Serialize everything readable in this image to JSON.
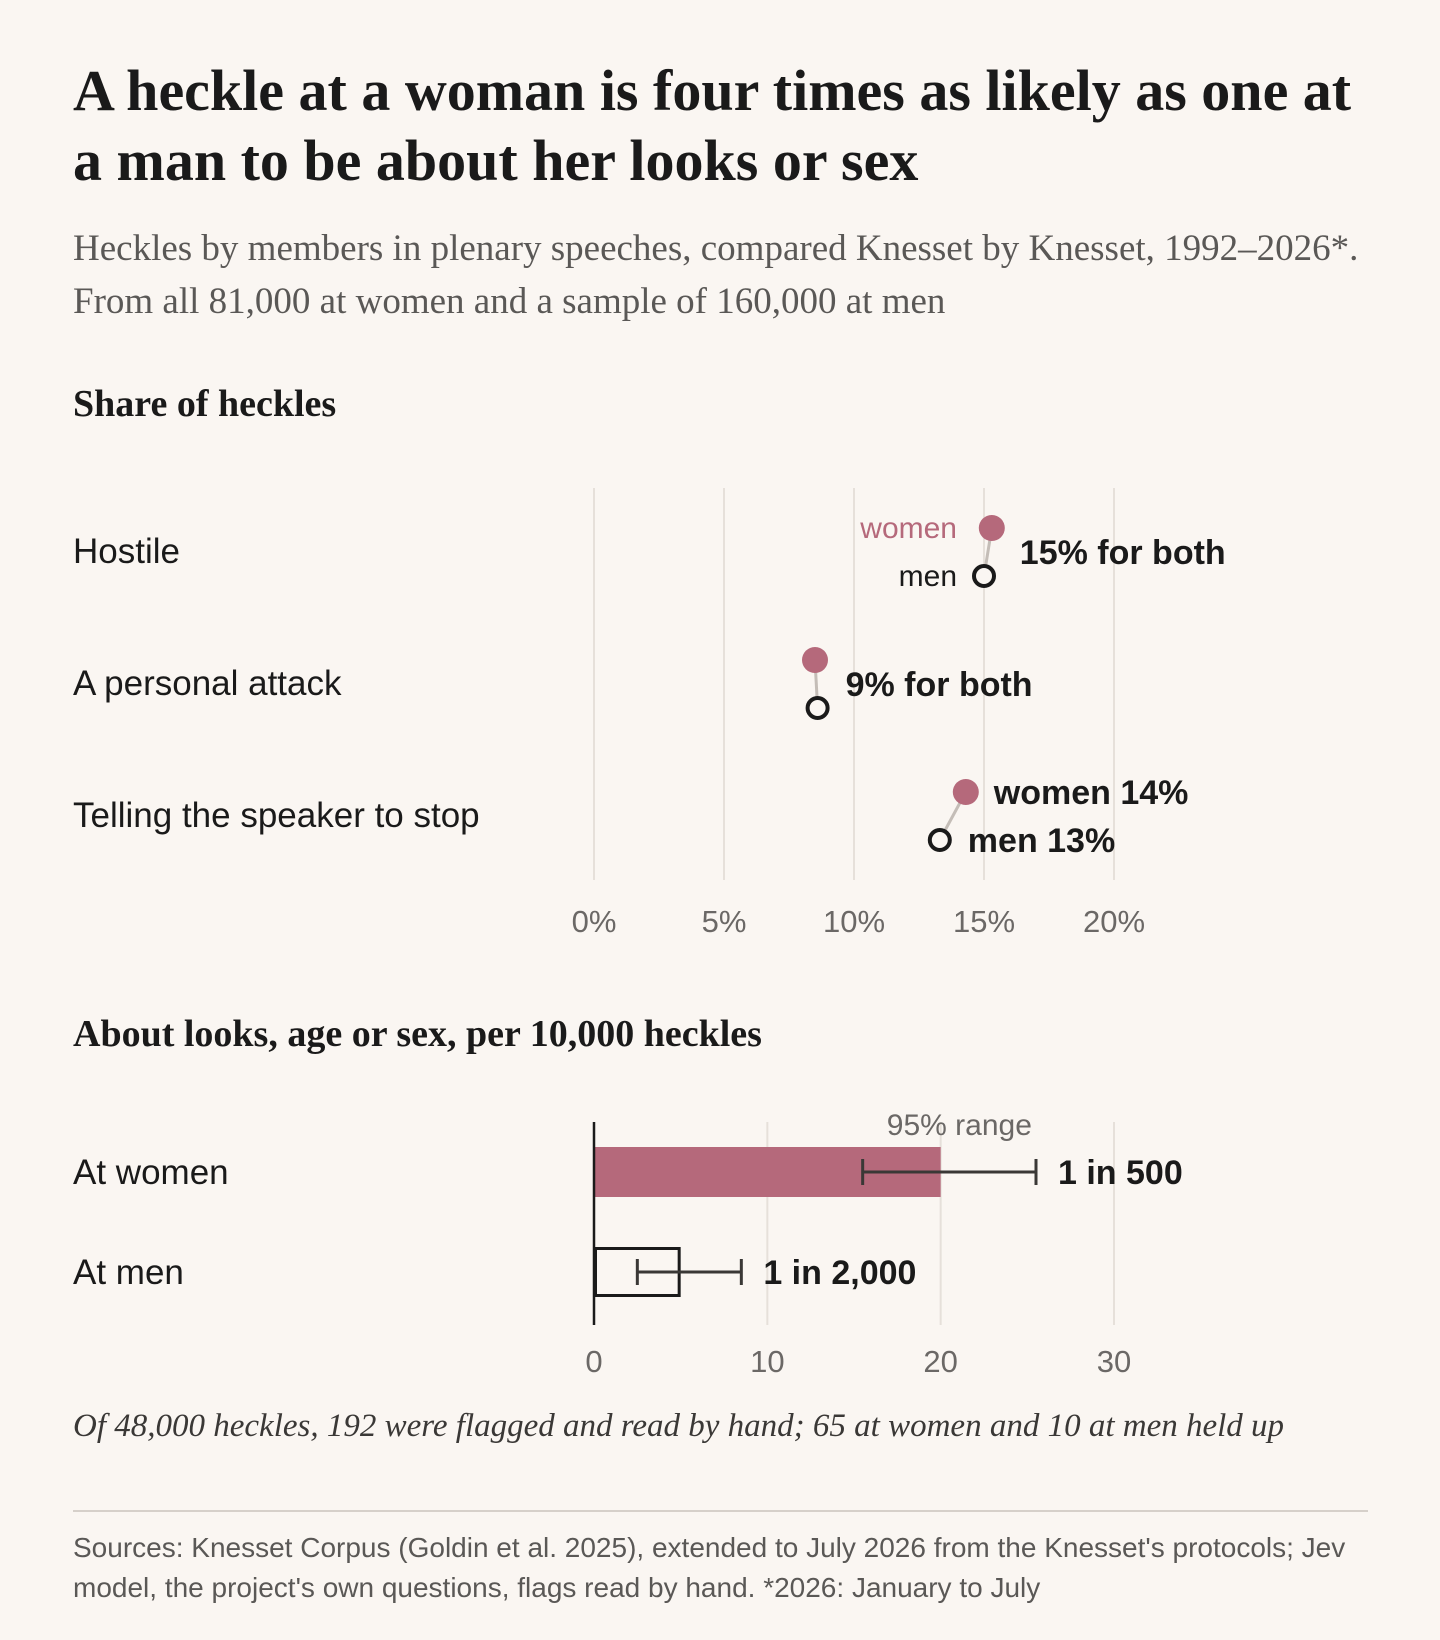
{
  "title": "A heckle at a woman is four times as likely as one at a man to be about her looks or sex",
  "subtitle": "Heckles by members in plenary speeches, compared Knesset by Knesset, 1992–2026*. From all 81,000 at women and a sample of 160,000 at men",
  "colors": {
    "women": "#b5697b",
    "men": "#1a1a1a",
    "grid": "#e6e0da",
    "background": "#faf6f2"
  },
  "chart_data": [
    {
      "type": "dot",
      "title": "Share of heckles",
      "xlim": [
        0,
        20
      ],
      "x_ticks": [
        {
          "value": 0,
          "label": "0%"
        },
        {
          "value": 5,
          "label": "5%"
        },
        {
          "value": 10,
          "label": "10%"
        },
        {
          "value": 15,
          "label": "15%"
        },
        {
          "value": 20,
          "label": "20%"
        }
      ],
      "series_labels": {
        "women": "women",
        "men": "men"
      },
      "categories": [
        "Hostile",
        "A personal attack",
        "Telling the speaker to stop"
      ],
      "series": [
        {
          "name": "women",
          "values": [
            15.3,
            8.5,
            14.3
          ]
        },
        {
          "name": "men",
          "values": [
            15.0,
            8.6,
            13.3
          ]
        }
      ],
      "annotations": [
        {
          "category": "Hostile",
          "text": "15% for both"
        },
        {
          "category": "A personal attack",
          "text": "9% for both"
        },
        {
          "category": "Telling the speaker to stop",
          "women_text": "women 14%",
          "men_text": "men 13%"
        }
      ]
    },
    {
      "type": "bar",
      "title": "About looks, age or sex, per 10,000 heckles",
      "xlim": [
        0,
        30
      ],
      "x_ticks": [
        {
          "value": 0,
          "label": "0"
        },
        {
          "value": 10,
          "label": "10"
        },
        {
          "value": 20,
          "label": "20"
        },
        {
          "value": 30,
          "label": "30"
        }
      ],
      "categories": [
        "At women",
        "At men"
      ],
      "values": [
        20,
        5
      ],
      "ci_low": [
        15.5,
        2.5
      ],
      "ci_high": [
        25.5,
        8.5
      ],
      "ci_label": "95% range",
      "value_labels": [
        "1 in 500",
        "1 in 2,000"
      ]
    }
  ],
  "note": "Of 48,000 heckles, 192 were flagged and read by hand; 65 at women and 10 at men held up",
  "sources": "Sources: Knesset Corpus (Goldin et al. 2025), extended to July 2026 from the Knesset's protocols; Jev model, the project's own questions, flags read by hand. *2026: January to July"
}
